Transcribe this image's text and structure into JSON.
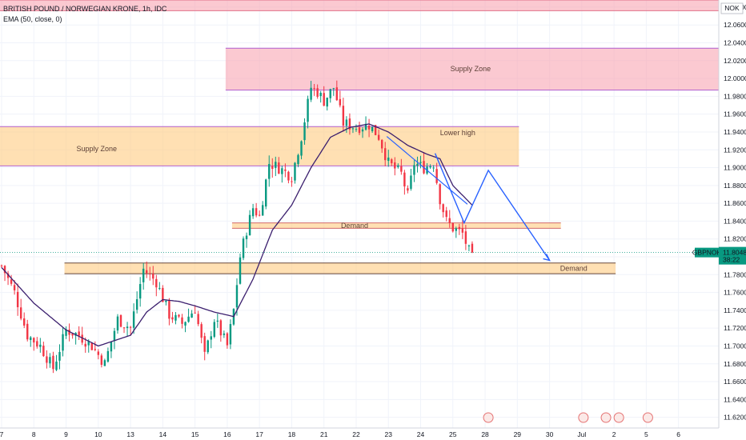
{
  "header": {
    "symbol_line": "BRITISH POUND / NORWEGIAN KRONE, 1h, IDC",
    "indicator_line": "EMA (50, close, 0)",
    "currency": "NOK"
  },
  "price_badge": {
    "symbol": "GBPNOK",
    "price": "11.8048",
    "countdown": "38:22",
    "color": "#089981"
  },
  "colors": {
    "up": "#089981",
    "down": "#f23645",
    "ema": "#3b1f6e",
    "projection": "#2962ff",
    "supply_fill": "#f8a5b3",
    "orange_fill": "#ffcc80"
  },
  "chart_data": {
    "type": "candlestick",
    "ylim": [
      11.608,
      12.088
    ],
    "y_ticks": [
      "12.0800",
      "12.0600",
      "12.0400",
      "12.0200",
      "12.0000",
      "11.9800",
      "11.9600",
      "11.9400",
      "11.9200",
      "11.9000",
      "11.8800",
      "11.8600",
      "11.8400",
      "11.8200",
      "11.8000",
      "11.7800",
      "11.7600",
      "11.7400",
      "11.7200",
      "11.7000",
      "11.6800",
      "11.6600",
      "11.6400",
      "11.6200"
    ],
    "x_ticks": [
      {
        "label": "7",
        "t": 0.5
      },
      {
        "label": "8",
        "t": 10.5
      },
      {
        "label": "9",
        "t": 20.5
      },
      {
        "label": "10",
        "t": 30.5
      },
      {
        "label": "13",
        "t": 40.5
      },
      {
        "label": "14",
        "t": 50.5
      },
      {
        "label": "15",
        "t": 60.5
      },
      {
        "label": "16",
        "t": 70.5
      },
      {
        "label": "17",
        "t": 80.5
      },
      {
        "label": "18",
        "t": 90.5
      },
      {
        "label": "21",
        "t": 100.5
      },
      {
        "label": "22",
        "t": 110.5
      },
      {
        "label": "23",
        "t": 120.5
      },
      {
        "label": "24",
        "t": 130.5
      },
      {
        "label": "25",
        "t": 140.5
      },
      {
        "label": "28",
        "t": 150.5
      },
      {
        "label": "29",
        "t": 160.5
      },
      {
        "label": "30",
        "t": 170.5
      },
      {
        "label": "Jul",
        "t": 180.5
      },
      {
        "label": "2",
        "t": 190.5
      },
      {
        "label": "5",
        "t": 200.5
      },
      {
        "label": "6",
        "t": 210.5
      }
    ],
    "x_range": [
      0,
      223
    ],
    "ohlc_notes": "anchor closes per bar index; candles interpolated between anchors",
    "close_anchors": [
      [
        0,
        11.79
      ],
      [
        4,
        11.76
      ],
      [
        8,
        11.712
      ],
      [
        12,
        11.7
      ],
      [
        16,
        11.675
      ],
      [
        20,
        11.718
      ],
      [
        24,
        11.712
      ],
      [
        28,
        11.7
      ],
      [
        32,
        11.68
      ],
      [
        36,
        11.73
      ],
      [
        40,
        11.72
      ],
      [
        44,
        11.786
      ],
      [
        48,
        11.772
      ],
      [
        52,
        11.735
      ],
      [
        56,
        11.725
      ],
      [
        60,
        11.742
      ],
      [
        63,
        11.688
      ],
      [
        66,
        11.73
      ],
      [
        70,
        11.7
      ],
      [
        72,
        11.74
      ],
      [
        74,
        11.8
      ],
      [
        76,
        11.83
      ],
      [
        78,
        11.855
      ],
      [
        80,
        11.845
      ],
      [
        83,
        11.905
      ],
      [
        86,
        11.9
      ],
      [
        90,
        11.89
      ],
      [
        93,
        11.935
      ],
      [
        96,
        11.99
      ],
      [
        98,
        11.985
      ],
      [
        100,
        11.975
      ],
      [
        103,
        11.99
      ],
      [
        106,
        11.95
      ],
      [
        110,
        11.945
      ],
      [
        114,
        11.948
      ],
      [
        117,
        11.935
      ],
      [
        120,
        11.905
      ],
      [
        124,
        11.893
      ],
      [
        126,
        11.868
      ],
      [
        128,
        11.905
      ],
      [
        131,
        11.9
      ],
      [
        134,
        11.905
      ],
      [
        136,
        11.865
      ],
      [
        138,
        11.84
      ],
      [
        140,
        11.832
      ],
      [
        143,
        11.826
      ],
      [
        145,
        11.806
      ],
      [
        146,
        11.805
      ]
    ],
    "ema_anchors": [
      [
        0,
        11.788
      ],
      [
        10,
        11.748
      ],
      [
        20,
        11.718
      ],
      [
        30,
        11.7
      ],
      [
        40,
        11.712
      ],
      [
        45,
        11.738
      ],
      [
        50,
        11.752
      ],
      [
        55,
        11.75
      ],
      [
        60,
        11.745
      ],
      [
        66,
        11.738
      ],
      [
        72,
        11.733
      ],
      [
        78,
        11.775
      ],
      [
        84,
        11.83
      ],
      [
        90,
        11.858
      ],
      [
        96,
        11.9
      ],
      [
        102,
        11.934
      ],
      [
        108,
        11.945
      ],
      [
        114,
        11.949
      ],
      [
        120,
        11.94
      ],
      [
        126,
        11.925
      ],
      [
        132,
        11.915
      ],
      [
        136,
        11.91
      ],
      [
        140,
        11.88
      ],
      [
        146,
        11.858
      ]
    ],
    "zones": [
      {
        "label": "",
        "t0": 0,
        "t1": 223,
        "y0": 12.088,
        "y1": 12.076,
        "fill": "#f8a5b3",
        "stroke": "#e07088"
      },
      {
        "label": "Supply Zone",
        "t0": 70,
        "t1": 223,
        "y0": 12.034,
        "y1": 11.987,
        "fill": "#f8a5b3",
        "stroke": "#b05fd0",
        "label_t": 146,
        "label_y": 12.011
      },
      {
        "label": "Supply Zone",
        "t0": 0,
        "t1": 161,
        "y0": 11.946,
        "y1": 11.902,
        "fill": "#ffcc80",
        "stroke": "#b05fd0",
        "label_t": 30,
        "label_y": 11.921
      },
      {
        "label": "Lower high",
        "t0": 0,
        "t1": 0,
        "y0": 0,
        "y1": 0,
        "fill": "none",
        "stroke": "none",
        "label_t": 142,
        "label_y": 11.939
      },
      {
        "label": "Demand",
        "t0": 72,
        "t1": 174,
        "y0": 11.838,
        "y1": 11.832,
        "fill": "#ffcc80",
        "stroke": "#d06a6a",
        "label_t": 110,
        "label_y": 11.835
      },
      {
        "label": "Demand",
        "t0": 20,
        "t1": 191,
        "y0": 11.793,
        "y1": 11.781,
        "fill": "#ffcc80",
        "stroke": "#6a4a3a",
        "label_t": 178,
        "label_y": 11.787
      }
    ],
    "projection": [
      [
        135,
        11.916
      ],
      [
        144,
        11.838
      ],
      [
        151.5,
        11.897
      ],
      [
        170.5,
        11.796
      ]
    ],
    "projection2": [
      [
        120,
        11.935
      ],
      [
        145,
        11.859
      ]
    ],
    "current_price": 11.8048
  }
}
